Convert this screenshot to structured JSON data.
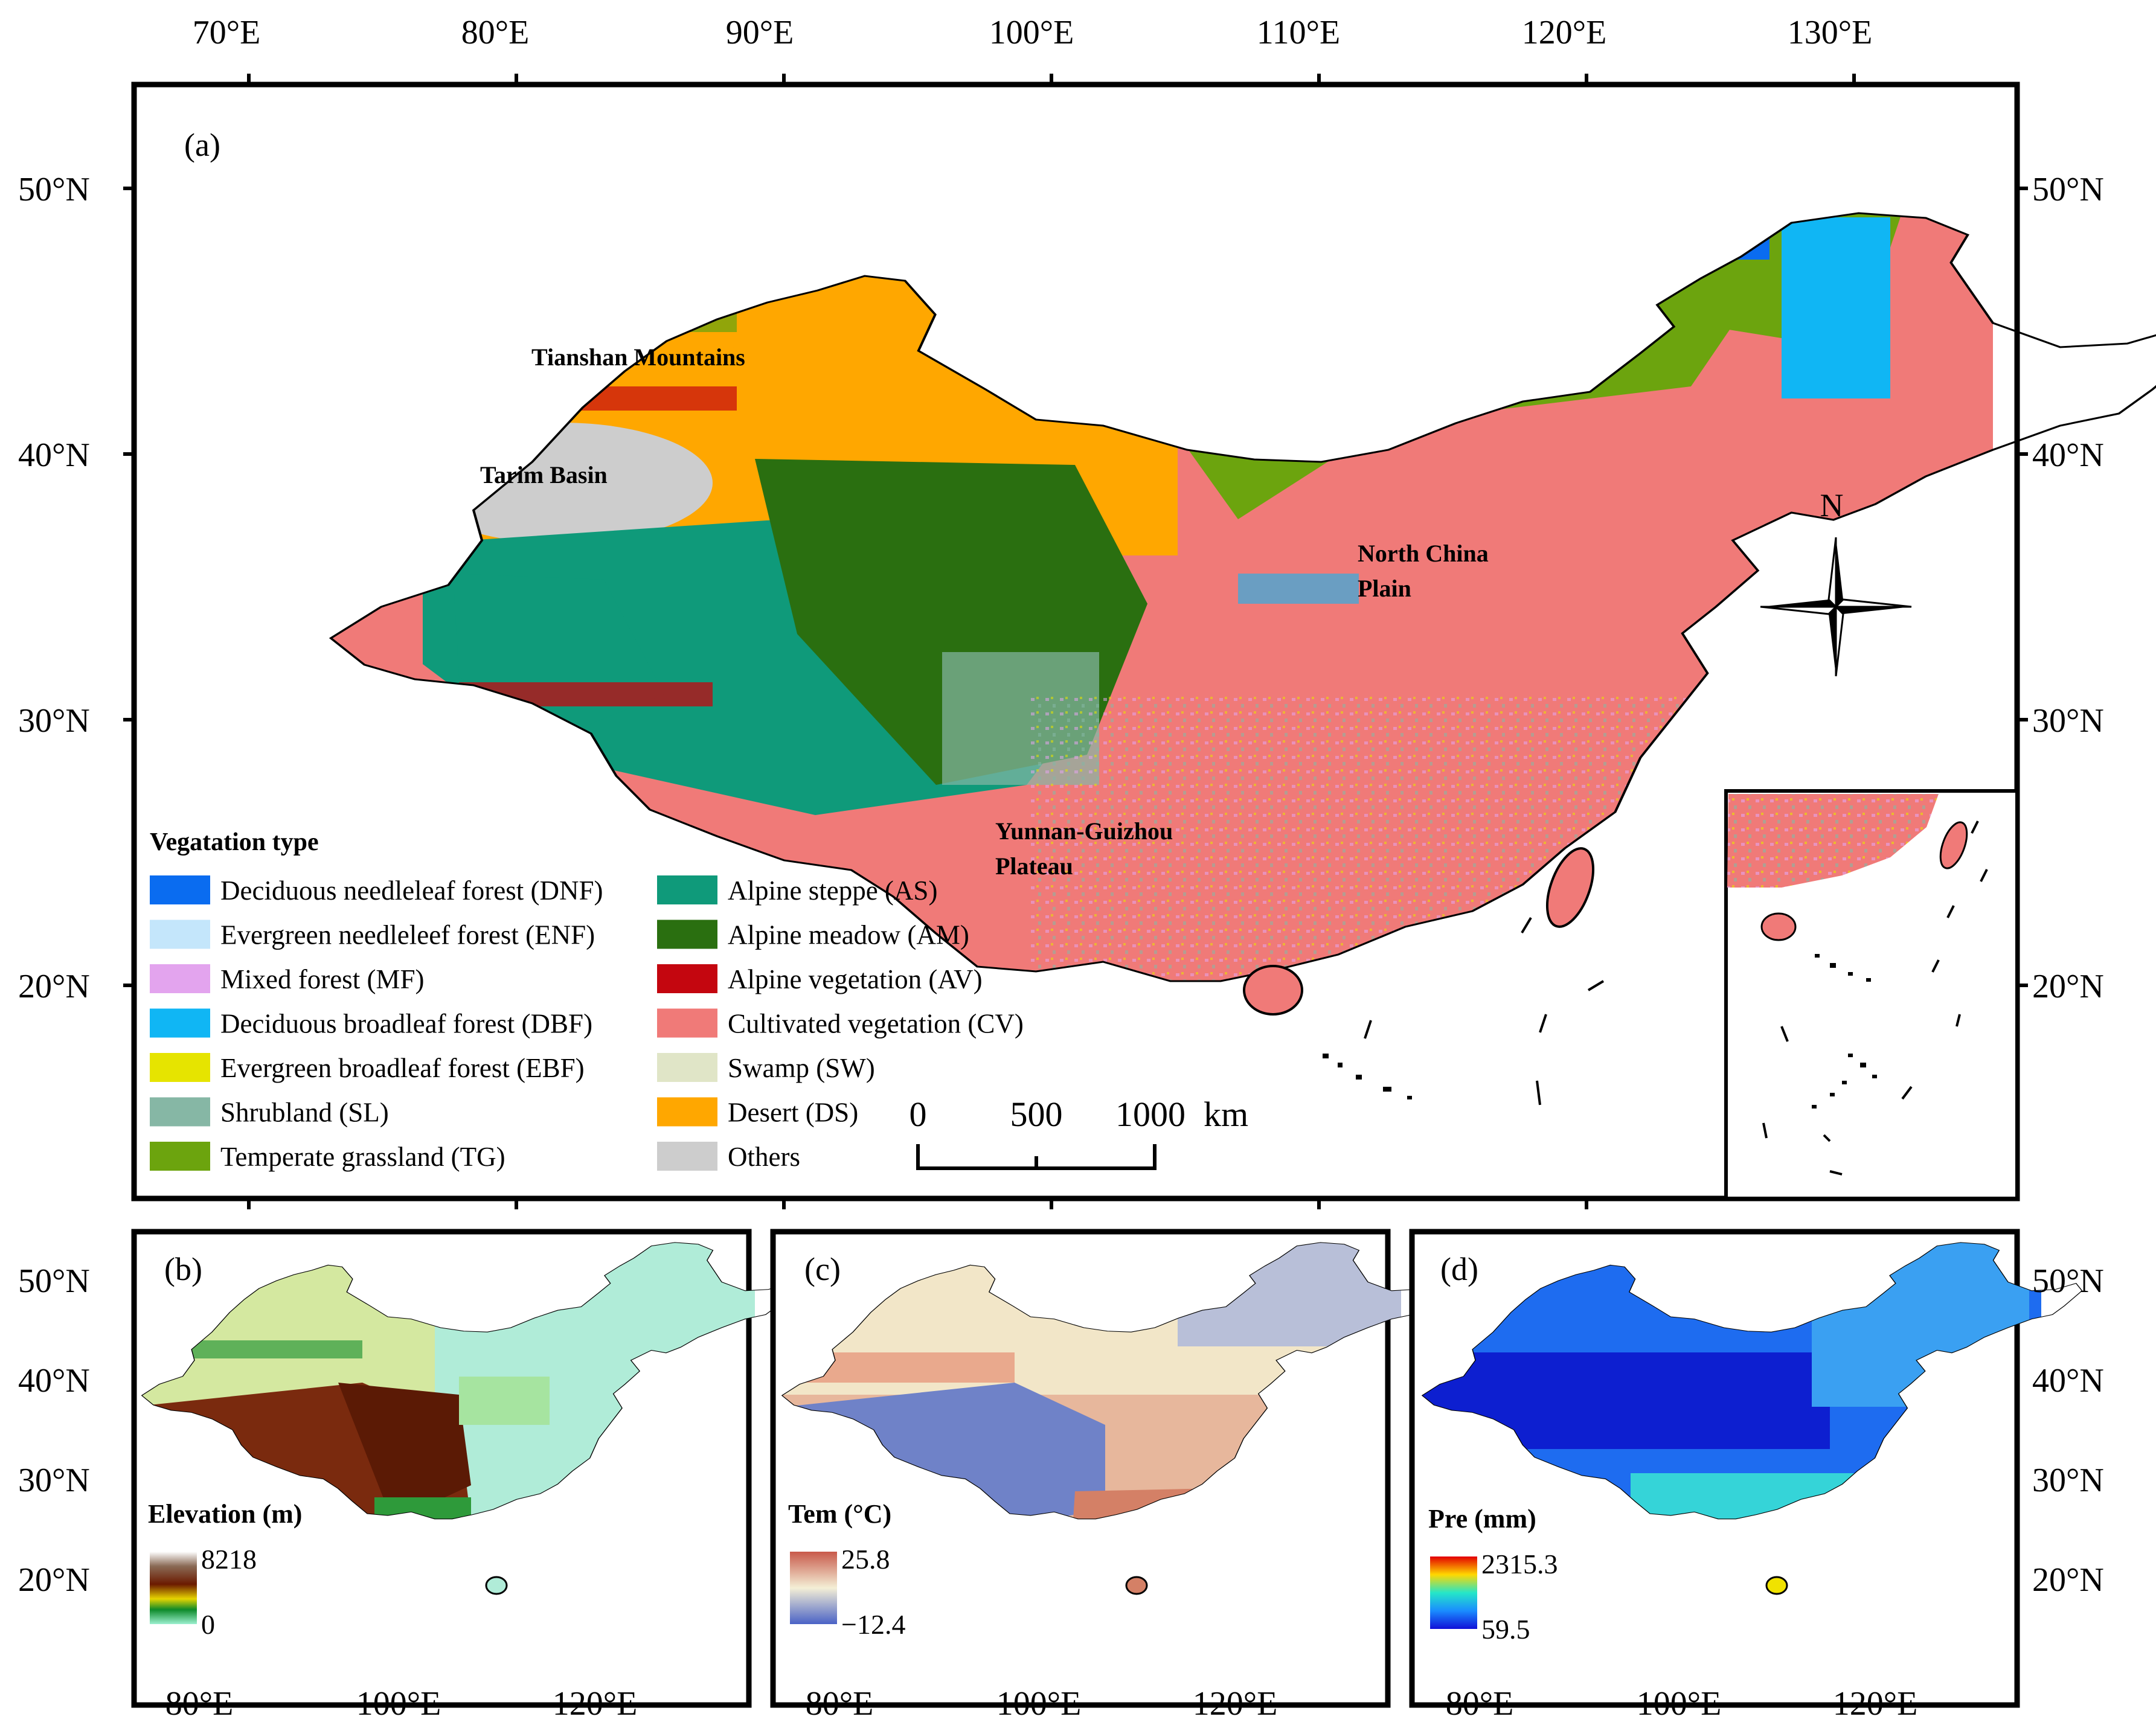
{
  "panels": {
    "a": {
      "label": "(a)"
    },
    "b": {
      "label": "(b)"
    },
    "c": {
      "label": "(c)"
    },
    "d": {
      "label": "(d)"
    }
  },
  "axes": {
    "top_lon": [
      "70°E",
      "80°E",
      "90°E",
      "100°E",
      "110°E",
      "120°E",
      "130°E"
    ],
    "lat_main": [
      "50°N",
      "40°N",
      "30°N",
      "20°N"
    ],
    "lat_small": [
      "50°N",
      "40°N",
      "30°N",
      "20°N"
    ],
    "bottom_lon": [
      "80°E",
      "100°E",
      "120°E"
    ]
  },
  "regions": {
    "tianshan": "Tianshan Mountains",
    "tarim": "Tarim Basin",
    "north_china_1": "North China",
    "north_china_2": "Plain",
    "yunnan_1": "Yunnan-Guizhou",
    "yunnan_2": "Plateau"
  },
  "compass": {
    "label": "N"
  },
  "scale_bar": {
    "ticks": [
      "0",
      "500",
      "1000"
    ],
    "unit": "km"
  },
  "legend": {
    "title": "Vegatation type",
    "items": [
      {
        "label": "Deciduous needleleaf forest (DNF)",
        "color": "#0a6cf0"
      },
      {
        "label": "Evergreen needleleef forest (ENF)",
        "color": "#c4e6fb"
      },
      {
        "label": "Mixed forest (MF)",
        "color": "#e3a4ee"
      },
      {
        "label": "Deciduous broadleaf forest (DBF)",
        "color": "#10b6f4"
      },
      {
        "label": "Evergreen broadleaf forest (EBF)",
        "color": "#e6e400"
      },
      {
        "label": "Shrubland (SL)",
        "color": "#86b7a5"
      },
      {
        "label": "Temperate grassland (TG)",
        "color": "#6ca40e"
      },
      {
        "label": "Alpine steppe (AS)",
        "color": "#0f9a7a"
      },
      {
        "label": "Alpine meadow (AM)",
        "color": "#2a6f10"
      },
      {
        "label": "Alpine vegetation (AV)",
        "color": "#c4060f"
      },
      {
        "label": "Cultivated vegetation (CV)",
        "color": "#f07a78"
      },
      {
        "label": "Swamp (SW)",
        "color": "#e0e5c7"
      },
      {
        "label": "Desert (DS)",
        "color": "#ffa700"
      },
      {
        "label": "Others",
        "color": "#cdcdcd"
      }
    ]
  },
  "elevation": {
    "title": "Elevation (m)",
    "max": "8218",
    "min": "0"
  },
  "temperature": {
    "title": "Tem (°C)",
    "max": "25.8",
    "min": "−12.4"
  },
  "precipitation": {
    "title": "Pre (mm)",
    "max": "2315.3",
    "min": "59.5"
  },
  "colors": {
    "desert": "#ffa700",
    "cultivated": "#f07a78",
    "others": "#cdcdcd",
    "alpine_steppe": "#0f9a7a",
    "alpine_meadow": "#2a6f10",
    "grassland": "#6ca40e",
    "dnf": "#0a6cf0"
  }
}
